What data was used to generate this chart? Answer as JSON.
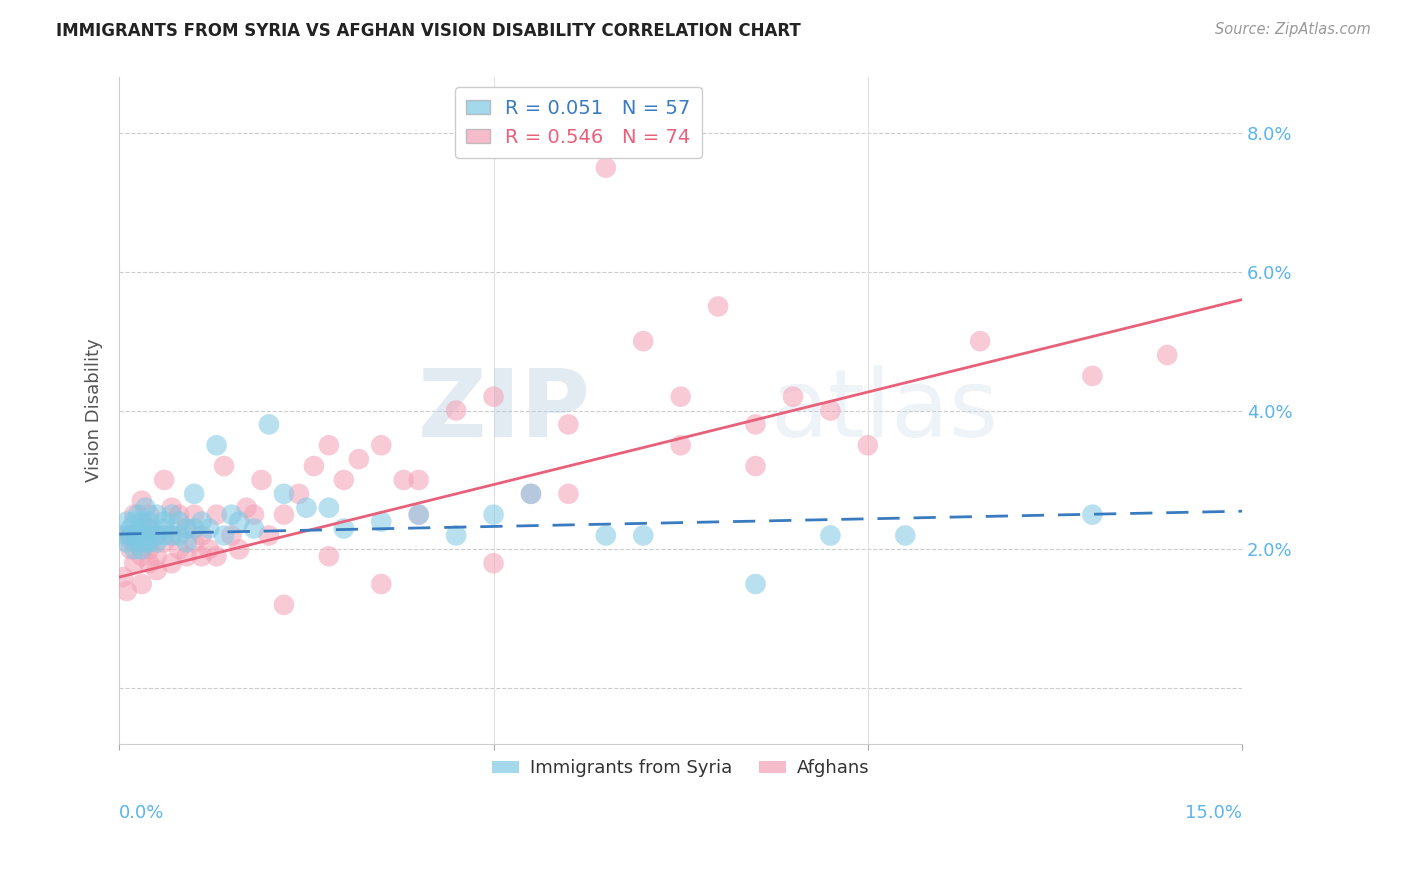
{
  "title": "IMMIGRANTS FROM SYRIA VS AFGHAN VISION DISABILITY CORRELATION CHART",
  "source": "Source: ZipAtlas.com",
  "ylabel": "Vision Disability",
  "yticks": [
    0.0,
    0.02,
    0.04,
    0.06,
    0.08
  ],
  "ytick_labels": [
    "",
    "2.0%",
    "4.0%",
    "6.0%",
    "8.0%"
  ],
  "xlim": [
    0.0,
    0.15
  ],
  "ylim": [
    -0.008,
    0.088
  ],
  "legend1_r": "R = 0.051",
  "legend1_n": "N = 57",
  "legend2_r": "R = 0.546",
  "legend2_n": "N = 74",
  "color_syria": "#7ec8e3",
  "color_afghan": "#f4a0b5",
  "color_trendline_syria": "#3a7bbf",
  "color_trendline_afghan": "#e8607a",
  "color_axis_labels": "#5ab4f0",
  "watermark_zip": "ZIP",
  "watermark_atlas": "atlas",
  "syria_x": [
    0.0005,
    0.001,
    0.001,
    0.0015,
    0.0015,
    0.002,
    0.002,
    0.002,
    0.0025,
    0.0025,
    0.003,
    0.003,
    0.003,
    0.003,
    0.0035,
    0.0035,
    0.004,
    0.004,
    0.004,
    0.004,
    0.005,
    0.005,
    0.005,
    0.006,
    0.006,
    0.006,
    0.007,
    0.007,
    0.008,
    0.008,
    0.009,
    0.009,
    0.01,
    0.01,
    0.011,
    0.012,
    0.013,
    0.014,
    0.015,
    0.016,
    0.018,
    0.02,
    0.022,
    0.025,
    0.028,
    0.03,
    0.035,
    0.04,
    0.045,
    0.05,
    0.055,
    0.065,
    0.07,
    0.085,
    0.095,
    0.105,
    0.13
  ],
  "syria_y": [
    0.022,
    0.024,
    0.021,
    0.023,
    0.022,
    0.02,
    0.024,
    0.022,
    0.021,
    0.025,
    0.023,
    0.02,
    0.022,
    0.024,
    0.021,
    0.026,
    0.022,
    0.024,
    0.021,
    0.023,
    0.022,
    0.025,
    0.021,
    0.023,
    0.022,
    0.024,
    0.025,
    0.022,
    0.024,
    0.022,
    0.023,
    0.021,
    0.023,
    0.028,
    0.024,
    0.023,
    0.035,
    0.022,
    0.025,
    0.024,
    0.023,
    0.038,
    0.028,
    0.026,
    0.026,
    0.023,
    0.024,
    0.025,
    0.022,
    0.025,
    0.028,
    0.022,
    0.022,
    0.015,
    0.022,
    0.022,
    0.025
  ],
  "afghan_x": [
    0.0005,
    0.001,
    0.001,
    0.0015,
    0.0015,
    0.002,
    0.002,
    0.002,
    0.003,
    0.003,
    0.003,
    0.003,
    0.004,
    0.004,
    0.004,
    0.004,
    0.005,
    0.005,
    0.005,
    0.006,
    0.006,
    0.007,
    0.007,
    0.007,
    0.008,
    0.008,
    0.009,
    0.009,
    0.01,
    0.01,
    0.011,
    0.011,
    0.012,
    0.013,
    0.013,
    0.014,
    0.015,
    0.016,
    0.017,
    0.018,
    0.019,
    0.02,
    0.022,
    0.024,
    0.026,
    0.028,
    0.03,
    0.032,
    0.035,
    0.038,
    0.04,
    0.045,
    0.05,
    0.055,
    0.06,
    0.065,
    0.07,
    0.075,
    0.08,
    0.085,
    0.09,
    0.095,
    0.1,
    0.115,
    0.13,
    0.14,
    0.085,
    0.075,
    0.06,
    0.05,
    0.04,
    0.035,
    0.028,
    0.022
  ],
  "afghan_y": [
    0.016,
    0.014,
    0.022,
    0.02,
    0.022,
    0.018,
    0.021,
    0.025,
    0.019,
    0.023,
    0.027,
    0.015,
    0.02,
    0.023,
    0.018,
    0.025,
    0.019,
    0.022,
    0.017,
    0.021,
    0.03,
    0.022,
    0.026,
    0.018,
    0.02,
    0.025,
    0.019,
    0.023,
    0.021,
    0.025,
    0.019,
    0.022,
    0.02,
    0.025,
    0.019,
    0.032,
    0.022,
    0.02,
    0.026,
    0.025,
    0.03,
    0.022,
    0.025,
    0.028,
    0.032,
    0.035,
    0.03,
    0.033,
    0.035,
    0.03,
    0.025,
    0.04,
    0.042,
    0.028,
    0.038,
    0.075,
    0.05,
    0.042,
    0.055,
    0.038,
    0.042,
    0.04,
    0.035,
    0.05,
    0.045,
    0.048,
    0.032,
    0.035,
    0.028,
    0.018,
    0.03,
    0.015,
    0.019,
    0.012
  ],
  "syria_trend_x": [
    0.0,
    0.15
  ],
  "syria_trend_y": [
    0.0222,
    0.0255
  ],
  "afghan_trend_x": [
    0.0,
    0.15
  ],
  "afghan_trend_y": [
    0.016,
    0.056
  ]
}
